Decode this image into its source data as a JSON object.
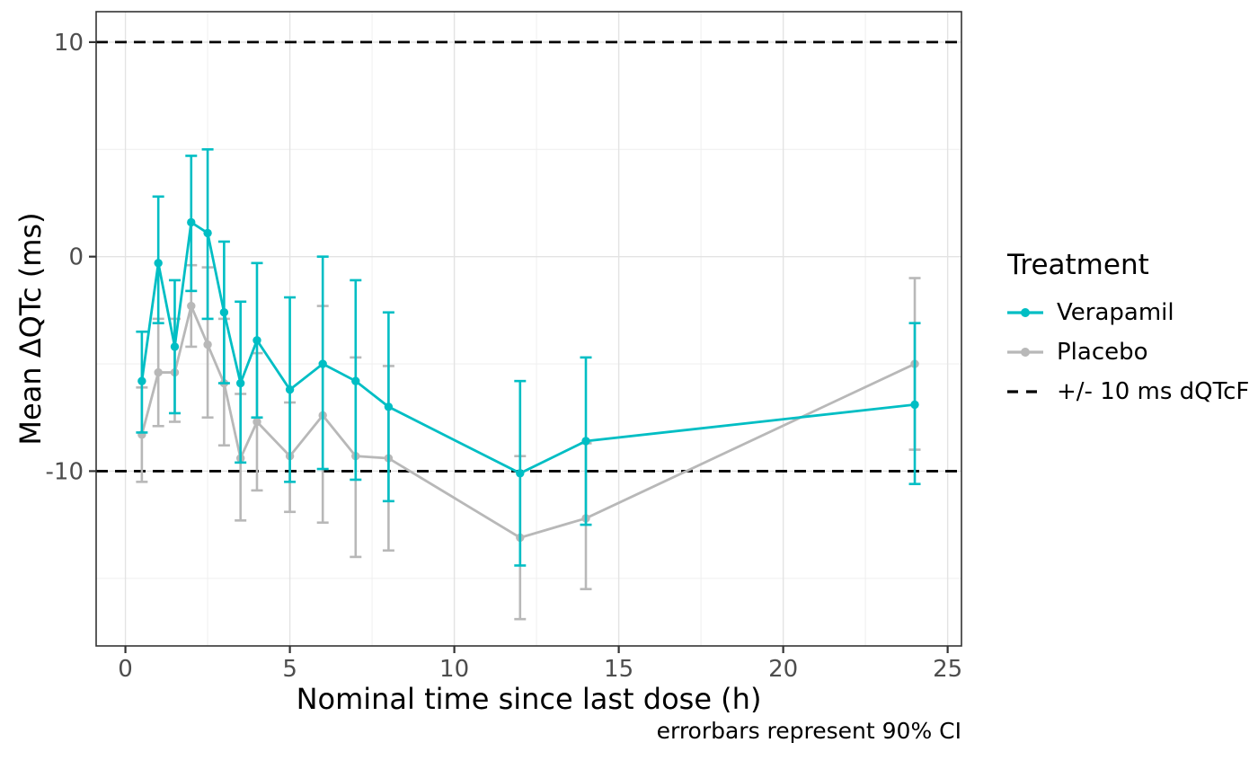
{
  "figure": {
    "background": "#FFFFFF",
    "panel_border_color": "#333333",
    "grid_major_color": "#E3E3E3",
    "grid_minor_color": "#F0F0F0",
    "tick_color": "#333333",
    "tick_label_color": "#4D4D4D",
    "text_color": "#000000"
  },
  "chart_data": {
    "type": "line",
    "title": "",
    "xlabel": "Nominal time since last dose (h)",
    "ylabel": "Mean ΔQTc (ms)",
    "caption": "errorbars represent 90% CI",
    "legend_title": "Treatment",
    "legend_position": "right",
    "grid": true,
    "error_bars": "90% CI",
    "x_ticks": [
      0,
      5,
      10,
      15,
      20,
      25
    ],
    "y_ticks": [
      10,
      0,
      -10
    ],
    "x_minor_ticks": [
      2.5,
      7.5,
      12.5,
      17.5,
      22.5
    ],
    "y_minor_ticks": [
      5,
      -5,
      -15
    ],
    "xlim": [
      -0.89,
      25.42
    ],
    "ylim": [
      -18.15,
      11.42
    ],
    "reference_lines": {
      "label": "+/- 10 ms dQTcF",
      "values": [
        10,
        -10
      ],
      "style": "dashed",
      "color": "#000000"
    },
    "x": [
      0.5,
      1,
      1.5,
      2,
      2.5,
      3,
      3.5,
      4,
      5,
      6,
      7,
      8,
      12,
      14,
      24
    ],
    "series": [
      {
        "name": "Placebo",
        "color": "#B8B8B8",
        "values": [
          -8.3,
          -5.4,
          -5.4,
          -2.3,
          -4.1,
          -5.9,
          -9.4,
          -7.7,
          -9.3,
          -7.4,
          -9.3,
          -9.4,
          -13.1,
          -12.2,
          -5.0
        ],
        "ci_low": [
          -10.5,
          -7.9,
          -7.7,
          -4.2,
          -7.5,
          -8.8,
          -12.3,
          -10.9,
          -11.9,
          -12.4,
          -14.0,
          -13.7,
          -16.9,
          -15.5,
          -9.0
        ],
        "ci_high": [
          -6.1,
          -2.9,
          -2.9,
          -0.4,
          -0.5,
          -2.9,
          -6.4,
          -4.5,
          -6.8,
          -2.3,
          -4.7,
          -5.1,
          -9.3,
          -8.7,
          -1.0
        ]
      },
      {
        "name": "Verapamil",
        "color": "#00BEC4",
        "values": [
          -5.8,
          -0.3,
          -4.2,
          1.6,
          1.1,
          -2.6,
          -5.9,
          -3.9,
          -6.2,
          -5.0,
          -5.8,
          -7.0,
          -10.1,
          -8.6,
          -6.9
        ],
        "ci_low": [
          -8.2,
          -3.1,
          -7.3,
          -1.6,
          -2.9,
          -5.9,
          -9.6,
          -7.5,
          -10.5,
          -9.9,
          -10.4,
          -11.4,
          -14.4,
          -12.5,
          -10.6
        ],
        "ci_high": [
          -3.5,
          2.8,
          -1.1,
          4.7,
          5.0,
          0.7,
          -2.1,
          -0.3,
          -1.9,
          0.0,
          -1.1,
          -2.6,
          -5.8,
          -4.7,
          -3.1
        ]
      }
    ]
  },
  "legend": {
    "title": "Treatment",
    "items": [
      {
        "label": "Verapamil",
        "key": "line-dot",
        "color": "#00BEC4"
      },
      {
        "label": "Placebo",
        "key": "line-dot",
        "color": "#B8B8B8"
      },
      {
        "label": "+/- 10 ms dQTcF",
        "key": "dashed-line",
        "color": "#000000"
      }
    ]
  }
}
